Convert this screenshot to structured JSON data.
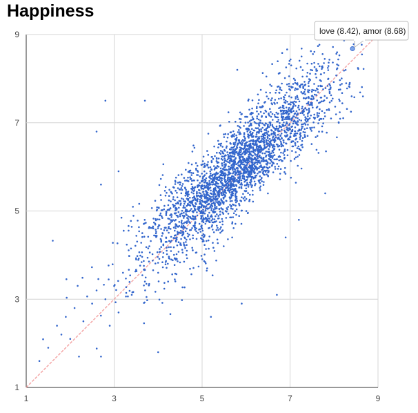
{
  "title": "Happiness",
  "tooltip": {
    "text": "love (8.42), amor (8.68)",
    "point": [
      8.42,
      8.68
    ]
  },
  "chart_data": {
    "type": "scatter",
    "title": "Happiness",
    "xlabel": "",
    "ylabel": "",
    "xlim": [
      1,
      9
    ],
    "ylim": [
      1,
      9
    ],
    "xticks": [
      1,
      3,
      5,
      7,
      9
    ],
    "yticks": [
      1,
      3,
      5,
      7,
      9
    ],
    "grid": true,
    "reference_line": {
      "from": [
        1,
        1
      ],
      "to": [
        9,
        9
      ],
      "color": "#f4a6a6"
    },
    "point_color": "#3366cc",
    "series": [
      {
        "distribution": {
          "approx_points": 3000,
          "center": [
            5.8,
            6.0
          ],
          "trend": "y ≈ x"
        },
        "values": [
          [
            1.3,
            1.6
          ],
          [
            1.5,
            1.9
          ],
          [
            1.7,
            2.4
          ],
          [
            1.8,
            2.2
          ],
          [
            1.9,
            2.6
          ],
          [
            2.0,
            2.1
          ],
          [
            2.1,
            2.8
          ],
          [
            2.2,
            1.7
          ],
          [
            2.3,
            2.5
          ],
          [
            2.5,
            2.9
          ],
          [
            2.6,
            3.2
          ],
          [
            2.7,
            1.7
          ],
          [
            2.8,
            3.0
          ],
          [
            2.9,
            2.4
          ],
          [
            3.0,
            3.3
          ],
          [
            3.1,
            2.7
          ],
          [
            3.2,
            3.6
          ],
          [
            3.4,
            3.1
          ],
          [
            3.5,
            3.9
          ],
          [
            3.7,
            3.4
          ],
          [
            3.8,
            4.2
          ],
          [
            4.0,
            3.6
          ],
          [
            4.1,
            4.5
          ],
          [
            4.3,
            3.9
          ],
          [
            4.4,
            4.8
          ],
          [
            4.6,
            4.4
          ],
          [
            4.8,
            5.0
          ],
          [
            5.0,
            4.6
          ],
          [
            5.1,
            5.4
          ],
          [
            5.3,
            5.8
          ],
          [
            5.4,
            5.2
          ],
          [
            5.5,
            6.1
          ],
          [
            5.6,
            5.6
          ],
          [
            5.7,
            6.3
          ],
          [
            5.8,
            5.9
          ],
          [
            5.9,
            6.5
          ],
          [
            6.0,
            6.1
          ],
          [
            6.1,
            6.8
          ],
          [
            6.2,
            6.3
          ],
          [
            6.3,
            7.0
          ],
          [
            6.5,
            6.6
          ],
          [
            6.6,
            7.2
          ],
          [
            6.8,
            6.9
          ],
          [
            6.9,
            7.5
          ],
          [
            7.1,
            7.2
          ],
          [
            7.3,
            7.8
          ],
          [
            7.5,
            7.4
          ],
          [
            7.7,
            8.1
          ],
          [
            7.9,
            7.7
          ],
          [
            8.1,
            8.3
          ],
          [
            8.4,
            8.7
          ],
          [
            8.4,
            7.6
          ],
          [
            2.8,
            7.5
          ],
          [
            2.6,
            6.8
          ],
          [
            4.0,
            1.8
          ],
          [
            5.2,
            2.6
          ],
          [
            5.9,
            2.9
          ],
          [
            6.7,
            3.1
          ],
          [
            5.8,
            8.2
          ],
          [
            2.7,
            5.6
          ],
          [
            3.1,
            5.9
          ],
          [
            3.7,
            7.5
          ],
          [
            6.9,
            4.4
          ],
          [
            7.2,
            4.8
          ],
          [
            7.8,
            5.4
          ]
        ]
      }
    ]
  }
}
